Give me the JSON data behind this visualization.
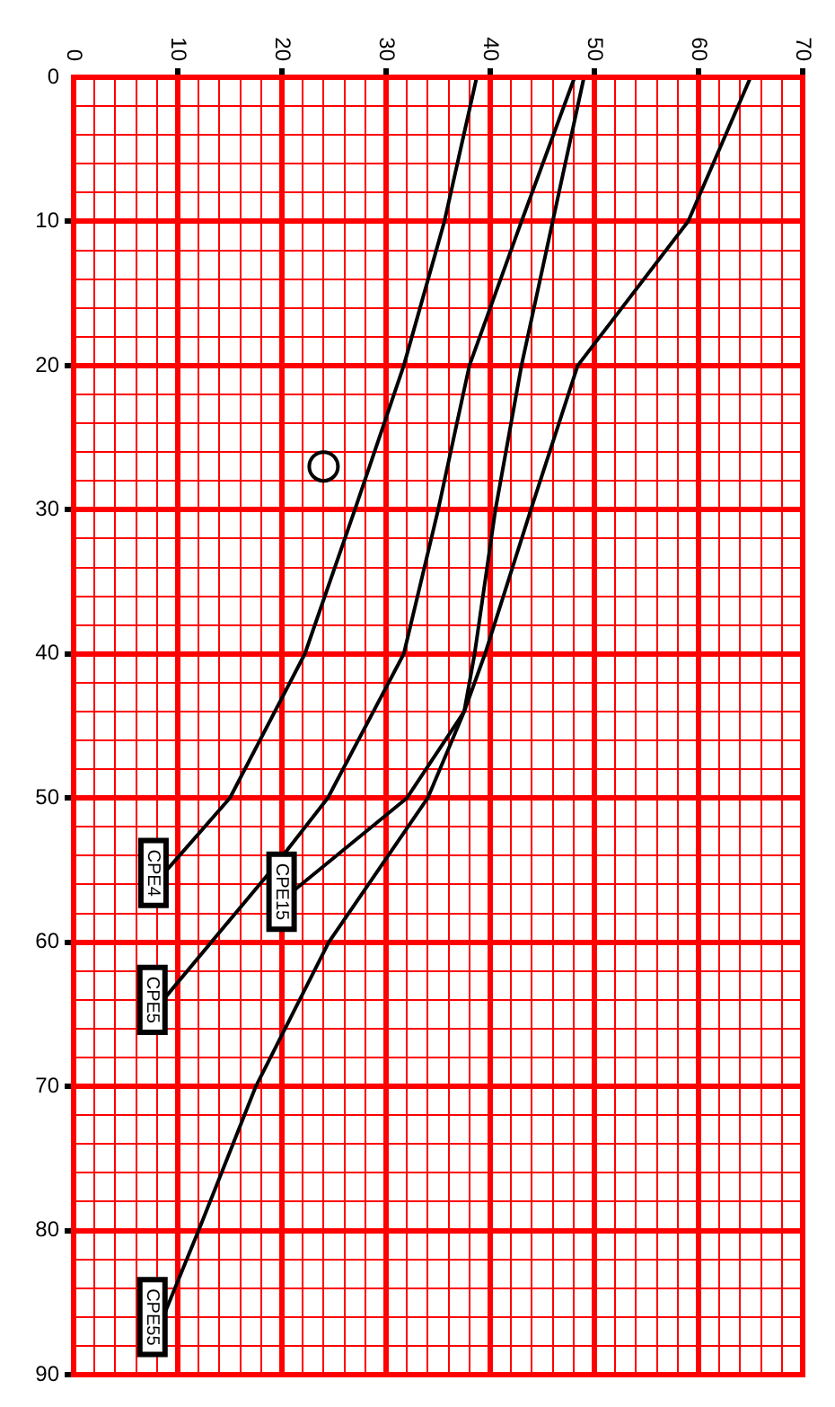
{
  "chart_data": {
    "type": "line",
    "xlim": [
      0,
      70
    ],
    "ylim": [
      90,
      0
    ],
    "yticks": [
      0,
      {
        "value": 2,
        "label": null
      },
      {
        "value": 4,
        "label": null
      },
      {
        "value": 6,
        "label": null
      },
      {
        "value": 8,
        "label": null
      },
      10,
      {
        "value": 12,
        "label": null
      },
      {
        "value": 14,
        "label": null
      },
      {
        "value": 16,
        "label": null
      },
      {
        "value": 18,
        "label": null
      },
      20,
      {
        "value": 22,
        "label": null
      },
      {
        "value": 24,
        "label": null
      },
      {
        "value": 26,
        "label": null
      },
      {
        "value": 28,
        "label": null
      },
      30,
      {
        "value": 32,
        "label": null
      },
      {
        "value": 34,
        "label": null
      },
      {
        "value": 36,
        "label": null
      },
      {
        "value": 38,
        "label": null
      },
      40,
      {
        "value": 42,
        "label": null
      },
      {
        "value": 44,
        "label": null
      },
      {
        "value": 46,
        "label": null
      },
      {
        "value": 48,
        "label": null
      },
      50,
      {
        "value": 52,
        "label": null
      },
      {
        "value": 54,
        "label": null
      },
      {
        "value": 56,
        "label": null
      },
      {
        "value": 58,
        "label": null
      },
      60,
      {
        "value": 62,
        "label": null
      },
      {
        "value": 64,
        "label": null
      },
      {
        "value": 66,
        "label": null
      },
      {
        "value": 68,
        "label": null
      },
      70,
      {
        "value": 72,
        "label": null
      },
      {
        "value": 74,
        "label": null
      },
      {
        "value": 76,
        "label": null
      },
      {
        "value": 78,
        "label": null
      },
      80,
      {
        "value": 82,
        "label": null
      },
      {
        "value": 84,
        "label": null
      },
      {
        "value": 86,
        "label": null
      },
      {
        "value": 88,
        "label": null
      },
      90
    ],
    "xticks": [
      0,
      {
        "value": 2,
        "label": null
      },
      {
        "value": 4,
        "label": null
      },
      {
        "value": 6,
        "label": null
      },
      {
        "value": 8,
        "label": null
      },
      10,
      {
        "value": 12,
        "label": null
      },
      {
        "value": 14,
        "label": null
      },
      {
        "value": 16,
        "label": null
      },
      {
        "value": 18,
        "label": null
      },
      20,
      {
        "value": 22,
        "label": null
      },
      {
        "value": 24,
        "label": null
      },
      {
        "value": 26,
        "label": null
      },
      {
        "value": 28,
        "label": null
      },
      30,
      {
        "value": 32,
        "label": null
      },
      {
        "value": 34,
        "label": null
      },
      {
        "value": 36,
        "label": null
      },
      {
        "value": 38,
        "label": null
      },
      40,
      {
        "value": 42,
        "label": null
      },
      {
        "value": 44,
        "label": null
      },
      {
        "value": 46,
        "label": null
      },
      {
        "value": 48,
        "label": null
      },
      50,
      {
        "value": 52,
        "label": null
      },
      {
        "value": 54,
        "label": null
      },
      {
        "value": 56,
        "label": null
      },
      {
        "value": 58,
        "label": null
      },
      60,
      {
        "value": 62,
        "label": null
      },
      {
        "value": 64,
        "label": null
      },
      {
        "value": 66,
        "label": null
      },
      {
        "value": 68,
        "label": null
      },
      70
    ],
    "grid": true,
    "legend": false,
    "line_style": "solid",
    "series": [
      {
        "color": "#000000",
        "values": [
          0,
          10,
          20,
          30,
          40,
          50,
          55.2
        ],
        "x": [
          38.7,
          35.6,
          31.7,
          27,
          22.2,
          15,
          8.7
        ]
      },
      {
        "color": "#000000",
        "values": [
          0,
          10,
          20,
          30,
          40,
          50,
          55,
          64
        ],
        "x": [
          48.1,
          43,
          38,
          35,
          31.7,
          24.4,
          19,
          8.6
        ]
      },
      {
        "color": "#000000",
        "values": [
          0,
          10,
          20,
          30,
          40,
          44,
          50,
          56.5
        ],
        "x": [
          65,
          59,
          48.4,
          43.9,
          39.5,
          37.5,
          32,
          21
        ]
      },
      {
        "color": "#000000",
        "values": [
          0,
          10,
          20,
          30,
          40,
          44,
          50,
          60,
          70,
          80,
          86
        ],
        "x": [
          49,
          46,
          43,
          40.5,
          38.5,
          37.5,
          34,
          24.5,
          17.5,
          12,
          8.6
        ]
      },
      {
        "type": "scatter",
        "marker": "circle",
        "color": "#000000",
        "x": [
          24
        ],
        "values": [
          27
        ]
      }
    ],
    "annotations": [
      {
        "text": "CPE4",
        "x": 8.7,
        "y": 55.2
      },
      {
        "text": "CPE5",
        "x": 8.6,
        "y": 64
      },
      {
        "text": "CPE15",
        "x": 21,
        "y": 56.5
      },
      {
        "text": "CPE55",
        "x": 8.6,
        "y": 86
      }
    ]
  }
}
